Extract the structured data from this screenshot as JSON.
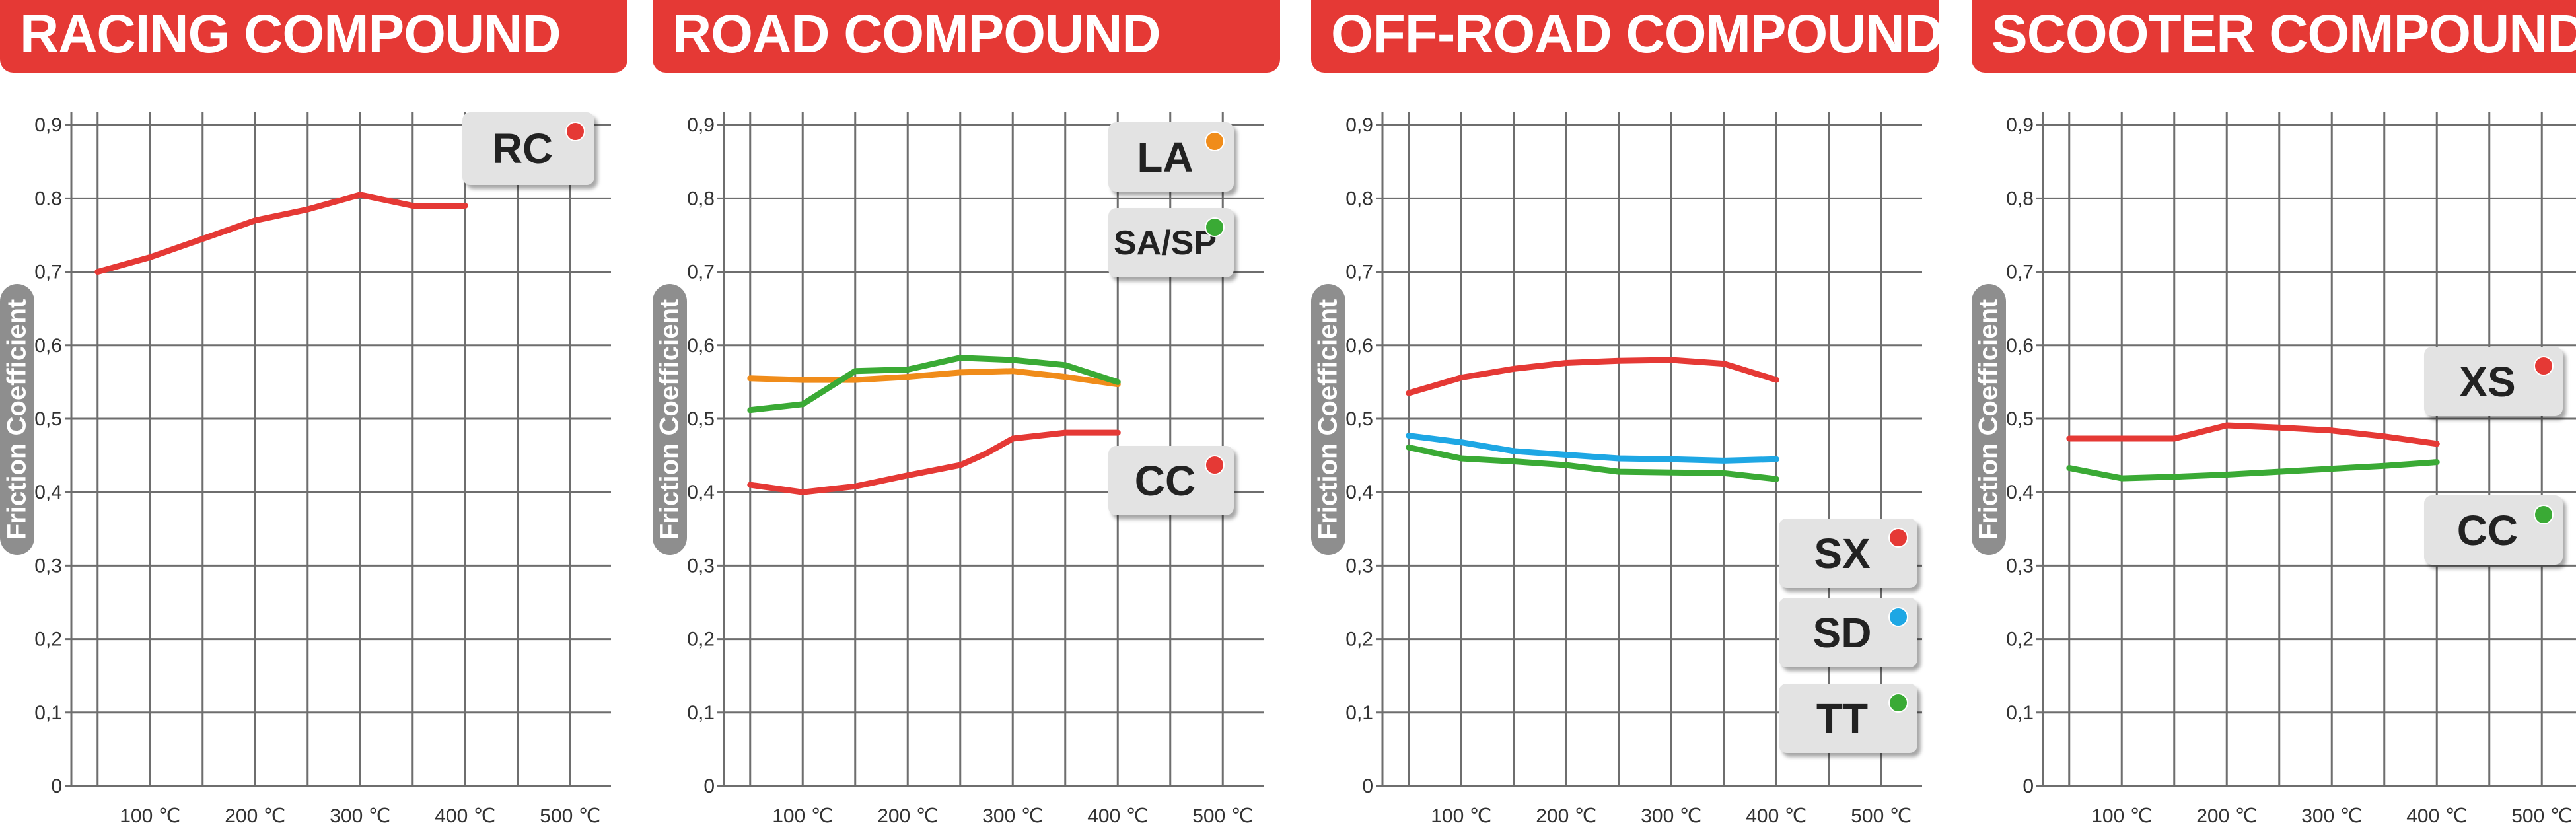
{
  "chart_data": [
    {
      "type": "line",
      "title": "RACING COMPOUND",
      "ylabel": "Friction Coefficient",
      "y_ticks": [
        "0",
        "0,1",
        "0,2",
        "0,3",
        "0,4",
        "0,5",
        "0,6",
        "0,7",
        "0.8",
        "0,9"
      ],
      "x_ticks": [
        "100 ℃",
        "200 ℃",
        "300 ℃",
        "400 ℃",
        "500 ℃"
      ],
      "ylim": [
        0,
        0.9
      ],
      "grid": true,
      "series": [
        {
          "name": "RC",
          "color": "#e53935",
          "x": [
            50,
            100,
            150,
            200,
            250,
            300,
            350,
            400
          ],
          "y": [
            0.7,
            0.72,
            0.745,
            0.77,
            0.785,
            0.805,
            0.79,
            0.79
          ]
        }
      ]
    },
    {
      "type": "line",
      "title": "ROAD COMPOUND",
      "ylabel": "Friction Coefficient",
      "y_ticks": [
        "0",
        "0,1",
        "0,2",
        "0,3",
        "0,4",
        "0,5",
        "0,6",
        "0,7",
        "0,8",
        "0,9"
      ],
      "x_ticks": [
        "100 ℃",
        "200 ℃",
        "300 ℃",
        "400 ℃",
        "500 ℃"
      ],
      "ylim": [
        0,
        0.9
      ],
      "grid": true,
      "series": [
        {
          "name": "LA",
          "color": "#f08c1a",
          "x": [
            50,
            100,
            150,
            200,
            250,
            300,
            350,
            400
          ],
          "y": [
            0.555,
            0.553,
            0.553,
            0.557,
            0.563,
            0.565,
            0.557,
            0.547
          ]
        },
        {
          "name": "SA/SP",
          "color": "#3aaa35",
          "x": [
            50,
            100,
            150,
            200,
            250,
            300,
            350,
            400
          ],
          "y": [
            0.512,
            0.52,
            0.565,
            0.567,
            0.583,
            0.58,
            0.573,
            0.55
          ]
        },
        {
          "name": "CC",
          "color": "#e53935",
          "x": [
            50,
            100,
            150,
            200,
            250,
            275,
            300,
            350,
            400
          ],
          "y": [
            0.41,
            0.4,
            0.408,
            0.423,
            0.437,
            0.453,
            0.473,
            0.481,
            0.481
          ]
        }
      ]
    },
    {
      "type": "line",
      "title": "OFF-ROAD COMPOUND",
      "ylabel": "Friction Coefficient",
      "y_ticks": [
        "0",
        "0,1",
        "0,2",
        "0,3",
        "0,4",
        "0,5",
        "0,6",
        "0,7",
        "0,8",
        "0,9"
      ],
      "x_ticks": [
        "100 ℃",
        "200 ℃",
        "300 ℃",
        "400 ℃",
        "500 ℃"
      ],
      "ylim": [
        0,
        0.9
      ],
      "grid": true,
      "series": [
        {
          "name": "SX",
          "color": "#e53935",
          "x": [
            50,
            100,
            150,
            200,
            250,
            300,
            350,
            400
          ],
          "y": [
            0.535,
            0.556,
            0.568,
            0.576,
            0.579,
            0.58,
            0.575,
            0.553
          ]
        },
        {
          "name": "SD",
          "color": "#1ea7e4",
          "x": [
            50,
            100,
            150,
            200,
            250,
            300,
            350,
            400
          ],
          "y": [
            0.477,
            0.468,
            0.456,
            0.451,
            0.446,
            0.445,
            0.443,
            0.445
          ]
        },
        {
          "name": "TT",
          "color": "#3aaa35",
          "x": [
            50,
            100,
            150,
            200,
            250,
            300,
            350,
            400
          ],
          "y": [
            0.461,
            0.446,
            0.442,
            0.437,
            0.428,
            0.427,
            0.426,
            0.418
          ]
        }
      ]
    },
    {
      "type": "line",
      "title": "SCOOTER COMPOUND",
      "ylabel": "Friction Coefficient",
      "y_ticks": [
        "0",
        "0,1",
        "0,2",
        "0,3",
        "0,4",
        "0,5",
        "0,6",
        "0,7",
        "0,8",
        "0,9"
      ],
      "x_ticks": [
        "100 ℃",
        "200 ℃",
        "300 ℃",
        "400 ℃",
        "500 ℃"
      ],
      "ylim": [
        0,
        0.9
      ],
      "grid": true,
      "series": [
        {
          "name": "XS",
          "color": "#e53935",
          "x": [
            50,
            100,
            150,
            200,
            250,
            300,
            350,
            400
          ],
          "y": [
            0.473,
            0.473,
            0.473,
            0.491,
            0.488,
            0.484,
            0.476,
            0.466
          ]
        },
        {
          "name": "CC",
          "color": "#3aaa35",
          "x": [
            50,
            100,
            150,
            200,
            250,
            300,
            350,
            400
          ],
          "y": [
            0.433,
            0.419,
            0.421,
            0.424,
            0.428,
            0.432,
            0.436,
            0.441
          ]
        }
      ]
    }
  ]
}
